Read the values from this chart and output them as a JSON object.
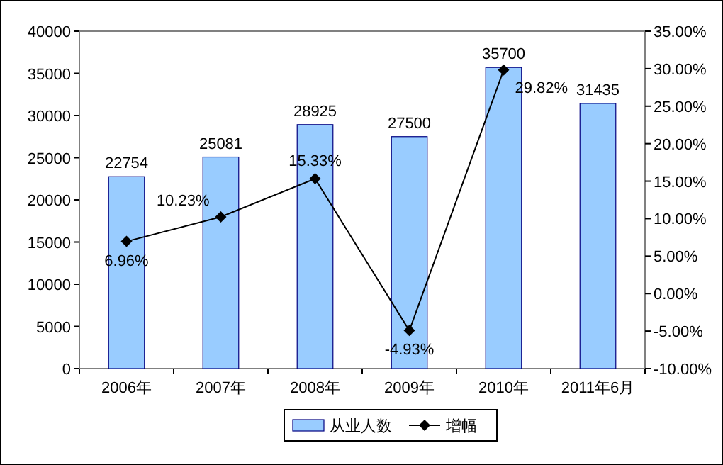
{
  "chart_data": {
    "type": "bar",
    "categories": [
      "2006年",
      "2007年",
      "2008年",
      "2009年",
      "2010年",
      "2011年6月"
    ],
    "series": [
      {
        "name": "从业人数",
        "color": "#99ccff",
        "values": [
          22754,
          25081,
          28925,
          27500,
          35700,
          31435
        ],
        "value_labels": [
          "22754",
          "25081",
          "28925",
          "27500",
          "35700",
          "31435"
        ]
      },
      {
        "name": "增幅",
        "type": "line",
        "color": "#000000",
        "marker": "diamond",
        "axis": "y2",
        "values": [
          6.96,
          10.23,
          15.33,
          -4.93,
          29.82,
          null
        ],
        "value_labels": [
          "6.96%",
          "10.23%",
          "15.33%",
          "-4.93%",
          "29.82%",
          null
        ]
      }
    ],
    "ylim": [
      0,
      40000
    ],
    "yticks": [
      0,
      5000,
      10000,
      15000,
      20000,
      25000,
      30000,
      35000,
      40000
    ],
    "y2lim": [
      -10,
      35
    ],
    "y2ticks": [
      {
        "value": -10,
        "label": "-10.00%"
      },
      {
        "value": -5,
        "label": "-5.00%"
      },
      {
        "value": 0,
        "label": "0.00%"
      },
      {
        "value": 5,
        "label": "5.00%"
      },
      {
        "value": 10,
        "label": "10.00%"
      },
      {
        "value": 15,
        "label": "15.00%"
      },
      {
        "value": 20,
        "label": "20.00%"
      },
      {
        "value": 25,
        "label": "25.00%"
      },
      {
        "value": 30,
        "label": "30.00%"
      },
      {
        "value": 35,
        "label": "35.00%"
      }
    ],
    "legend": "bottom"
  }
}
